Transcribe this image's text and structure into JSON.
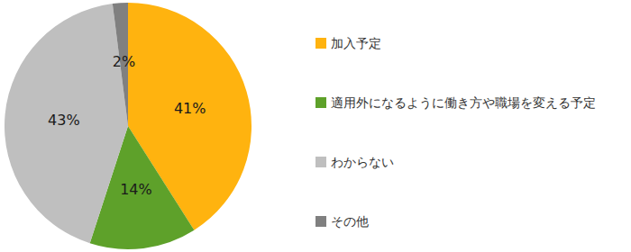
{
  "chart_data": {
    "type": "pie",
    "categories": [
      "加入予定",
      "適用外になるように働き方や職場を変える予定",
      "わからない",
      "その他"
    ],
    "values": [
      41,
      14,
      43,
      2
    ],
    "value_labels": [
      "41%",
      "14%",
      "43%",
      "2%"
    ],
    "colors": [
      "#FFB30F",
      "#5EA12A",
      "#BFBFBF",
      "#808080"
    ],
    "data_labels": true,
    "legend": "right"
  }
}
